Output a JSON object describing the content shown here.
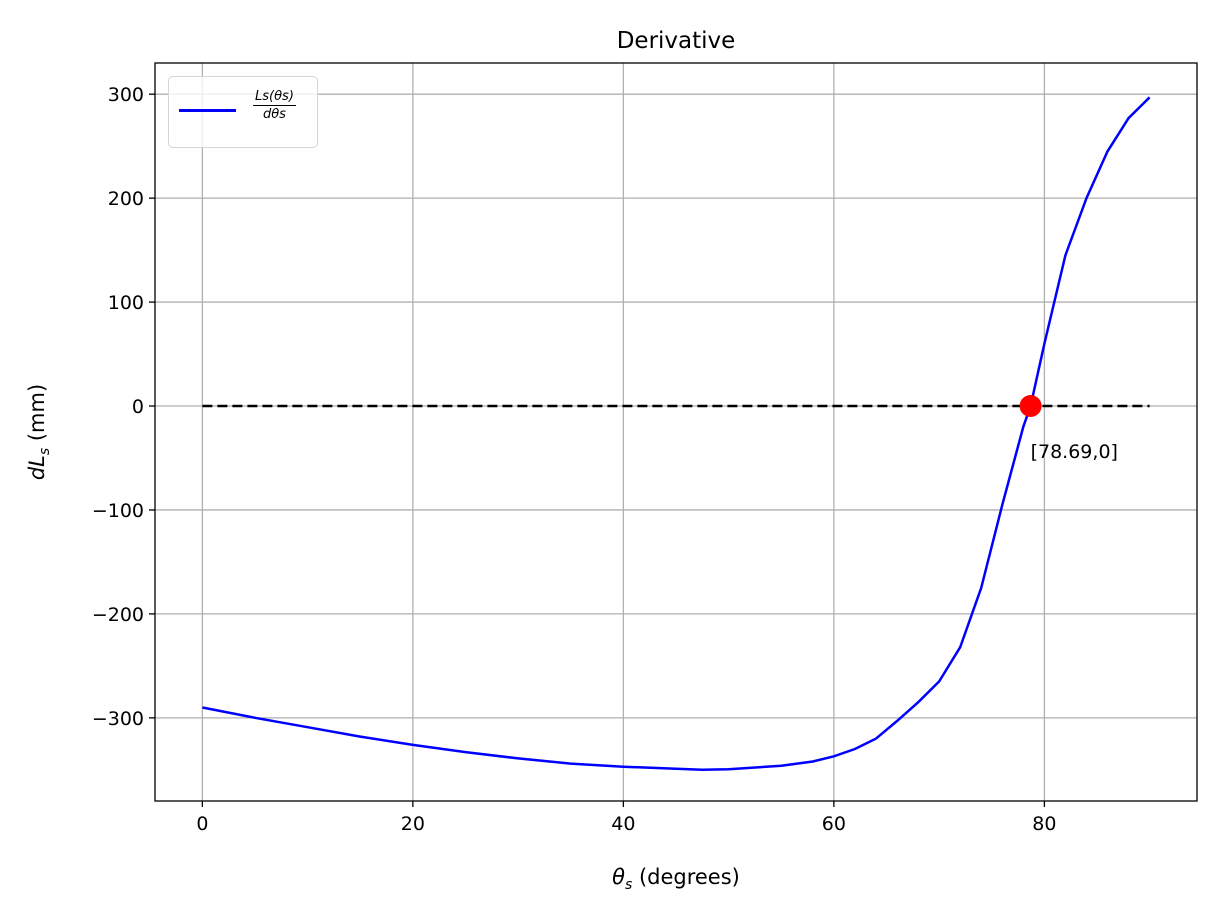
{
  "chart_data": {
    "type": "line",
    "title": "Derivative",
    "xlabel": "θs (degrees)",
    "ylabel": "dLs (mm)",
    "xlim": [
      -4.5,
      94.5
    ],
    "ylim": [
      -380,
      330
    ],
    "xticks": [
      0,
      20,
      40,
      60,
      80
    ],
    "yticks": [
      -300,
      -200,
      -100,
      0,
      100,
      200,
      300
    ],
    "xtick_labels": [
      "0",
      "20",
      "40",
      "60",
      "80"
    ],
    "ytick_labels": [
      "−300",
      "−200",
      "−100",
      "0",
      "100",
      "200",
      "300"
    ],
    "grid": true,
    "legend": {
      "placement": "top-left",
      "entries": [
        {
          "label": "Ls(θs)/dθs",
          "numerator": "Ls(θs)",
          "denominator": "dθs",
          "color": "#0000ff"
        }
      ]
    },
    "series": [
      {
        "name": "Ls(θs)/dθs",
        "color": "#0000ff",
        "style": "solid",
        "x": [
          0,
          5,
          10,
          15,
          20,
          25,
          30,
          35,
          40,
          45,
          47.5,
          50,
          55,
          58,
          60,
          62,
          64,
          66,
          68,
          70,
          72,
          74,
          76,
          78,
          78.69,
          80,
          82,
          84,
          86,
          88,
          90
        ],
        "y": [
          -290,
          -300,
          -309,
          -318,
          -326,
          -333,
          -339,
          -344,
          -347,
          -349,
          -350,
          -349.5,
          -346,
          -342,
          -337,
          -330,
          -320,
          -303,
          -285,
          -265,
          -232,
          -175,
          -95,
          -20,
          0,
          60,
          145,
          200,
          245,
          277,
          297
        ]
      },
      {
        "name": "zero line",
        "color": "#000000",
        "style": "dashed",
        "x": [
          0,
          90
        ],
        "y": [
          0,
          0
        ]
      }
    ],
    "marker": {
      "x": 78.69,
      "y": 0,
      "color": "#ff0000"
    },
    "annotation": {
      "text": "[78.69,0]",
      "x": 78.69,
      "y": 0
    }
  }
}
